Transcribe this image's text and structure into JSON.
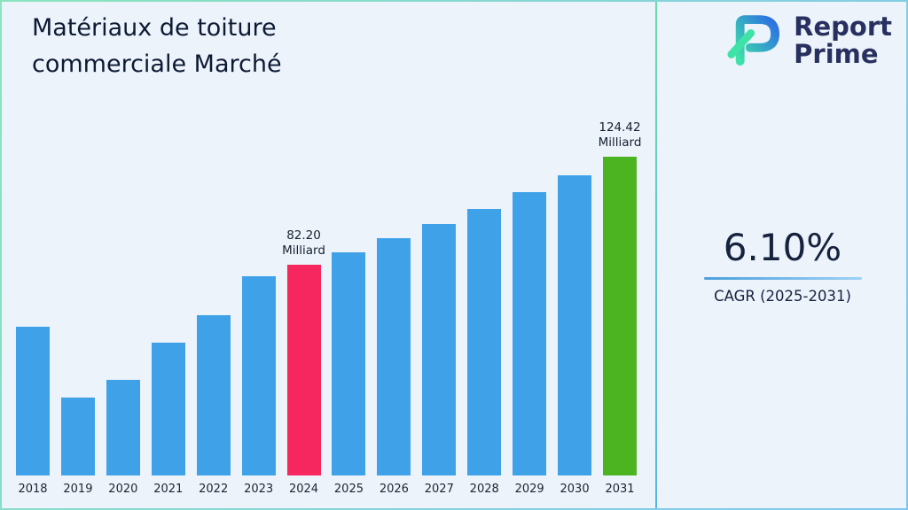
{
  "page": {
    "title_line1": "Matériaux de toiture",
    "title_line2": "commerciale Marché"
  },
  "logo": {
    "line1": "Report",
    "line2": "Prime"
  },
  "cagr": {
    "value": "6.10%",
    "label": "CAGR (2025-2031)"
  },
  "chart_data": {
    "type": "bar",
    "title": "Matériaux de toiture commerciale Marché",
    "unit": "Milliard",
    "categories": [
      "2018",
      "2019",
      "2020",
      "2021",
      "2022",
      "2023",
      "2024",
      "2025",
      "2026",
      "2027",
      "2028",
      "2029",
      "2030",
      "2031"
    ],
    "values": [
      57.9,
      30.4,
      37.2,
      51.8,
      62.6,
      77.9,
      82.2,
      87.2,
      92.5,
      98.1,
      104.1,
      110.5,
      117.2,
      124.42
    ],
    "ylim": [
      0,
      130
    ],
    "grid": false,
    "legend": "none",
    "bar_colors": {
      "default": "#3fa2e9",
      "2024": "#f6275f",
      "2031": "#4cb421"
    },
    "annotations": [
      {
        "category": "2024",
        "value_label": "82.20",
        "unit_label": "Milliard"
      },
      {
        "category": "2031",
        "value_label": "124.42",
        "unit_label": "Milliard"
      }
    ]
  }
}
